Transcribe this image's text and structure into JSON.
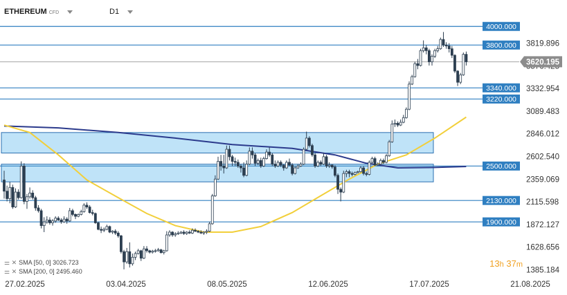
{
  "header": {
    "symbol": "ETHEREUM",
    "type": "CFD",
    "timeframe": "D1"
  },
  "legend": {
    "sma50": "SMA [50, 0] 3026.723",
    "sma200": "SMA [200, 0] 2495.460"
  },
  "timer": {
    "hours": "13",
    "h_unit": "h",
    "minutes": "37",
    "m_unit": "m"
  },
  "colors": {
    "level_line": "#2f7fc1",
    "level_label": "#2f7fc1",
    "zone_fill": "#bfe3f8",
    "zone_border": "#2a6fb0",
    "sma50": "#f2cf3a",
    "sma200": "#2b3a8c",
    "candle": "#2c3e50",
    "price_tag": "#8c8c8c"
  },
  "chart_data": {
    "type": "candlestick",
    "instrument": "ETHEREUM",
    "timeframe": "D1",
    "start_date": "2025-02-24",
    "ylim": [
      1300,
      4180
    ],
    "y_ticks": [
      "3819.896",
      "3576.425",
      "3332.954",
      "3089.483",
      "2846.012",
      "2602.540",
      "2359.069",
      "2115.598",
      "1872.127",
      "1628.656",
      "1385.184"
    ],
    "x_ticks": [
      "27.02.2025",
      "03.04.2025",
      "08.05.2025",
      "12.06.2025",
      "17.07.2025",
      "21.08.2025"
    ],
    "current_price": "3620.195",
    "levels": [
      {
        "value": 4000,
        "label": "4000.000"
      },
      {
        "value": 3800,
        "label": "3800.000"
      },
      {
        "value": 3340,
        "label": "3340.000"
      },
      {
        "value": 3220,
        "label": "3220.000"
      },
      {
        "value": 2500,
        "label": "2500.000"
      },
      {
        "value": 2130,
        "label": "2130.000"
      },
      {
        "value": 1900,
        "label": "1900.000"
      }
    ],
    "zones": [
      {
        "low": 2640,
        "high": 2860,
        "from": "2025-02-24",
        "to": "2025-07-24"
      },
      {
        "low": 2330,
        "high": 2520,
        "from": "2025-02-24",
        "to": "2025-07-24"
      }
    ],
    "sma50": [
      [
        "2025-02-24",
        2940
      ],
      [
        "2025-03-05",
        2860
      ],
      [
        "2025-03-15",
        2620
      ],
      [
        "2025-03-25",
        2350
      ],
      [
        "2025-04-05",
        2160
      ],
      [
        "2025-04-15",
        1990
      ],
      [
        "2025-04-25",
        1860
      ],
      [
        "2025-05-05",
        1790
      ],
      [
        "2025-05-15",
        1790
      ],
      [
        "2025-05-25",
        1850
      ],
      [
        "2025-06-05",
        2000
      ],
      [
        "2025-06-15",
        2180
      ],
      [
        "2025-06-25",
        2360
      ],
      [
        "2025-07-05",
        2520
      ],
      [
        "2025-07-15",
        2620
      ],
      [
        "2025-07-25",
        2800
      ],
      [
        "2025-08-05",
        3026
      ]
    ],
    "sma200": [
      [
        "2025-02-24",
        2930
      ],
      [
        "2025-03-15",
        2910
      ],
      [
        "2025-04-05",
        2860
      ],
      [
        "2025-04-25",
        2800
      ],
      [
        "2025-05-15",
        2730
      ],
      [
        "2025-06-05",
        2690
      ],
      [
        "2025-06-20",
        2620
      ],
      [
        "2025-07-01",
        2530
      ],
      [
        "2025-07-12",
        2480
      ],
      [
        "2025-07-25",
        2485
      ],
      [
        "2025-08-05",
        2495
      ]
    ],
    "candles": [
      [
        "2025-02-24",
        2350,
        2450,
        2150,
        2230
      ],
      [
        "2025-02-25",
        2230,
        2290,
        2120,
        2150
      ],
      [
        "2025-02-26",
        2150,
        2330,
        2100,
        2270
      ],
      [
        "2025-02-27",
        2270,
        2300,
        2040,
        2060
      ],
      [
        "2025-02-28",
        2060,
        2260,
        2050,
        2220
      ],
      [
        "2025-03-01",
        2220,
        2250,
        2140,
        2160
      ],
      [
        "2025-03-02",
        2160,
        2550,
        2150,
        2500
      ],
      [
        "2025-03-03",
        2500,
        2530,
        2090,
        2120
      ],
      [
        "2025-03-04",
        2120,
        2200,
        2040,
        2170
      ],
      [
        "2025-03-05",
        2170,
        2270,
        2150,
        2210
      ],
      [
        "2025-03-06",
        2210,
        2240,
        2140,
        2160
      ],
      [
        "2025-03-07",
        2160,
        2180,
        2020,
        2050
      ],
      [
        "2025-03-08",
        2050,
        2080,
        2000,
        2020
      ],
      [
        "2025-03-09",
        2020,
        2040,
        1830,
        1860
      ],
      [
        "2025-03-10",
        1860,
        1950,
        1790,
        1900
      ],
      [
        "2025-03-11",
        1900,
        1960,
        1880,
        1920
      ],
      [
        "2025-03-12",
        1920,
        1950,
        1870,
        1890
      ],
      [
        "2025-03-13",
        1890,
        1930,
        1860,
        1910
      ],
      [
        "2025-03-14",
        1910,
        1960,
        1890,
        1940
      ],
      [
        "2025-03-15",
        1940,
        1960,
        1910,
        1920
      ],
      [
        "2025-03-16",
        1920,
        1940,
        1880,
        1900
      ],
      [
        "2025-03-17",
        1900,
        1960,
        1890,
        1930
      ],
      [
        "2025-03-18",
        1930,
        1950,
        1880,
        1910
      ],
      [
        "2025-03-19",
        1910,
        2050,
        1900,
        2020
      ],
      [
        "2025-03-20",
        2020,
        2040,
        1960,
        1980
      ],
      [
        "2025-03-21",
        1980,
        1990,
        1930,
        1960
      ],
      [
        "2025-03-22",
        1960,
        1990,
        1950,
        1980
      ],
      [
        "2025-03-23",
        1980,
        2030,
        1970,
        2010
      ],
      [
        "2025-03-24",
        2010,
        2100,
        2000,
        2080
      ],
      [
        "2025-03-25",
        2080,
        2110,
        2040,
        2060
      ],
      [
        "2025-03-26",
        2060,
        2080,
        1990,
        2000
      ],
      [
        "2025-03-27",
        2000,
        2030,
        1970,
        1990
      ],
      [
        "2025-03-28",
        1990,
        2000,
        1880,
        1890
      ],
      [
        "2025-03-29",
        1890,
        1900,
        1810,
        1820
      ],
      [
        "2025-03-30",
        1820,
        1850,
        1780,
        1810
      ],
      [
        "2025-03-31",
        1810,
        1840,
        1790,
        1820
      ],
      [
        "2025-04-01",
        1820,
        1870,
        1810,
        1850
      ],
      [
        "2025-04-02",
        1850,
        1860,
        1780,
        1790
      ],
      [
        "2025-04-03",
        1790,
        1810,
        1770,
        1800
      ],
      [
        "2025-04-04",
        1800,
        1820,
        1760,
        1780
      ],
      [
        "2025-04-05",
        1780,
        1800,
        1730,
        1750
      ],
      [
        "2025-04-06",
        1750,
        1760,
        1560,
        1580
      ],
      [
        "2025-04-07",
        1580,
        1600,
        1390,
        1470
      ],
      [
        "2025-04-08",
        1470,
        1620,
        1450,
        1580
      ],
      [
        "2025-04-09",
        1580,
        1680,
        1410,
        1450
      ],
      [
        "2025-04-10",
        1450,
        1560,
        1430,
        1520
      ],
      [
        "2025-04-11",
        1520,
        1580,
        1490,
        1560
      ],
      [
        "2025-04-12",
        1560,
        1610,
        1550,
        1590
      ],
      [
        "2025-04-13",
        1590,
        1600,
        1480,
        1510
      ],
      [
        "2025-04-14",
        1510,
        1640,
        1500,
        1610
      ],
      [
        "2025-04-15",
        1610,
        1640,
        1570,
        1590
      ],
      [
        "2025-04-16",
        1590,
        1600,
        1560,
        1575
      ],
      [
        "2025-04-17",
        1575,
        1600,
        1560,
        1585
      ],
      [
        "2025-04-18",
        1585,
        1610,
        1570,
        1590
      ],
      [
        "2025-04-19",
        1590,
        1620,
        1580,
        1600
      ],
      [
        "2025-04-20",
        1600,
        1610,
        1560,
        1570
      ],
      [
        "2025-04-21",
        1570,
        1600,
        1550,
        1590
      ],
      [
        "2025-04-22",
        1590,
        1800,
        1580,
        1760
      ],
      [
        "2025-04-23",
        1760,
        1810,
        1740,
        1790
      ],
      [
        "2025-04-24",
        1790,
        1800,
        1740,
        1760
      ],
      [
        "2025-04-25",
        1760,
        1790,
        1740,
        1770
      ],
      [
        "2025-04-26",
        1770,
        1800,
        1760,
        1780
      ],
      [
        "2025-04-27",
        1780,
        1800,
        1770,
        1790
      ],
      [
        "2025-04-28",
        1790,
        1810,
        1760,
        1775
      ],
      [
        "2025-04-29",
        1775,
        1800,
        1760,
        1790
      ],
      [
        "2025-04-30",
        1790,
        1810,
        1770,
        1780
      ],
      [
        "2025-05-01",
        1780,
        1830,
        1770,
        1810
      ],
      [
        "2025-05-02",
        1810,
        1830,
        1790,
        1800
      ],
      [
        "2025-05-03",
        1800,
        1810,
        1780,
        1790
      ],
      [
        "2025-05-04",
        1790,
        1810,
        1770,
        1780
      ],
      [
        "2025-05-05",
        1780,
        1800,
        1760,
        1790
      ],
      [
        "2025-05-06",
        1790,
        1820,
        1770,
        1800
      ],
      [
        "2025-05-07",
        1800,
        1900,
        1790,
        1880
      ],
      [
        "2025-05-08",
        1880,
        2200,
        1870,
        2180
      ],
      [
        "2025-05-09",
        2180,
        2400,
        2170,
        2360
      ],
      [
        "2025-05-10",
        2360,
        2600,
        2350,
        2550
      ],
      [
        "2025-05-11",
        2550,
        2620,
        2450,
        2500
      ],
      [
        "2025-05-12",
        2500,
        2620,
        2420,
        2480
      ],
      [
        "2025-05-13",
        2480,
        2720,
        2470,
        2680
      ],
      [
        "2025-05-14",
        2680,
        2720,
        2560,
        2600
      ],
      [
        "2025-05-15",
        2600,
        2620,
        2500,
        2550
      ],
      [
        "2025-05-16",
        2550,
        2590,
        2500,
        2540
      ],
      [
        "2025-05-17",
        2540,
        2570,
        2480,
        2500
      ],
      [
        "2025-05-18",
        2500,
        2520,
        2430,
        2480
      ],
      [
        "2025-05-19",
        2480,
        2540,
        2380,
        2400
      ],
      [
        "2025-05-20",
        2400,
        2560,
        2390,
        2520
      ],
      [
        "2025-05-21",
        2520,
        2700,
        2510,
        2660
      ],
      [
        "2025-05-22",
        2660,
        2700,
        2580,
        2620
      ],
      [
        "2025-05-23",
        2620,
        2640,
        2500,
        2530
      ],
      [
        "2025-05-24",
        2530,
        2580,
        2510,
        2560
      ],
      [
        "2025-05-25",
        2560,
        2590,
        2480,
        2500
      ],
      [
        "2025-05-26",
        2500,
        2600,
        2490,
        2580
      ],
      [
        "2025-05-27",
        2580,
        2680,
        2570,
        2650
      ],
      [
        "2025-05-28",
        2650,
        2700,
        2600,
        2620
      ],
      [
        "2025-05-29",
        2620,
        2640,
        2500,
        2520
      ],
      [
        "2025-05-30",
        2520,
        2560,
        2480,
        2500
      ],
      [
        "2025-05-31",
        2500,
        2560,
        2490,
        2540
      ],
      [
        "2025-06-01",
        2540,
        2560,
        2490,
        2510
      ],
      [
        "2025-06-02",
        2510,
        2520,
        2450,
        2480
      ],
      [
        "2025-06-03",
        2480,
        2560,
        2470,
        2540
      ],
      [
        "2025-06-04",
        2540,
        2580,
        2500,
        2510
      ],
      [
        "2025-06-05",
        2510,
        2530,
        2400,
        2420
      ],
      [
        "2025-06-06",
        2420,
        2500,
        2410,
        2480
      ],
      [
        "2025-06-07",
        2480,
        2520,
        2470,
        2500
      ],
      [
        "2025-06-08",
        2500,
        2540,
        2490,
        2520
      ],
      [
        "2025-06-09",
        2520,
        2700,
        2510,
        2680
      ],
      [
        "2025-06-10",
        2680,
        2870,
        2670,
        2800
      ],
      [
        "2025-06-11",
        2800,
        2820,
        2700,
        2720
      ],
      [
        "2025-06-12",
        2720,
        2740,
        2600,
        2620
      ],
      [
        "2025-06-13",
        2620,
        2640,
        2480,
        2500
      ],
      [
        "2025-06-14",
        2500,
        2560,
        2490,
        2540
      ],
      [
        "2025-06-15",
        2540,
        2560,
        2500,
        2520
      ],
      [
        "2025-06-16",
        2520,
        2640,
        2510,
        2600
      ],
      [
        "2025-06-17",
        2600,
        2620,
        2480,
        2500
      ],
      [
        "2025-06-18",
        2500,
        2540,
        2480,
        2510
      ],
      [
        "2025-06-19",
        2510,
        2520,
        2470,
        2490
      ],
      [
        "2025-06-20",
        2490,
        2510,
        2380,
        2400
      ],
      [
        "2025-06-21",
        2400,
        2420,
        2200,
        2250
      ],
      [
        "2025-06-22",
        2250,
        2270,
        2120,
        2220
      ],
      [
        "2025-06-23",
        2220,
        2450,
        2210,
        2420
      ],
      [
        "2025-06-24",
        2420,
        2460,
        2380,
        2440
      ],
      [
        "2025-06-25",
        2440,
        2460,
        2380,
        2420
      ],
      [
        "2025-06-26",
        2420,
        2440,
        2390,
        2410
      ],
      [
        "2025-06-27",
        2410,
        2440,
        2400,
        2430
      ],
      [
        "2025-06-28",
        2430,
        2450,
        2420,
        2440
      ],
      [
        "2025-06-29",
        2440,
        2500,
        2430,
        2480
      ],
      [
        "2025-06-30",
        2480,
        2500,
        2400,
        2420
      ],
      [
        "2025-07-01",
        2420,
        2440,
        2390,
        2410
      ],
      [
        "2025-07-02",
        2410,
        2560,
        2400,
        2540
      ],
      [
        "2025-07-03",
        2540,
        2600,
        2520,
        2580
      ],
      [
        "2025-07-04",
        2580,
        2600,
        2500,
        2510
      ],
      [
        "2025-07-05",
        2510,
        2540,
        2500,
        2520
      ],
      [
        "2025-07-06",
        2520,
        2580,
        2510,
        2560
      ],
      [
        "2025-07-07",
        2560,
        2580,
        2520,
        2540
      ],
      [
        "2025-07-08",
        2540,
        2630,
        2530,
        2610
      ],
      [
        "2025-07-09",
        2610,
        2780,
        2600,
        2760
      ],
      [
        "2025-07-10",
        2760,
        2990,
        2750,
        2950
      ],
      [
        "2025-07-11",
        2950,
        3000,
        2920,
        2960
      ],
      [
        "2025-07-12",
        2960,
        2980,
        2920,
        2940
      ],
      [
        "2025-07-13",
        2940,
        3000,
        2930,
        2970
      ],
      [
        "2025-07-14",
        2970,
        3050,
        2960,
        3020
      ],
      [
        "2025-07-15",
        3020,
        3130,
        3010,
        3110
      ],
      [
        "2025-07-16",
        3110,
        3410,
        3100,
        3380
      ],
      [
        "2025-07-17",
        3380,
        3480,
        3370,
        3460
      ],
      [
        "2025-07-18",
        3460,
        3620,
        3450,
        3600
      ],
      [
        "2025-07-19",
        3600,
        3650,
        3540,
        3580
      ],
      [
        "2025-07-20",
        3580,
        3760,
        3570,
        3740
      ],
      [
        "2025-07-21",
        3740,
        3850,
        3720,
        3770
      ],
      [
        "2025-07-22",
        3770,
        3800,
        3700,
        3740
      ],
      [
        "2025-07-23",
        3740,
        3760,
        3580,
        3620
      ],
      [
        "2025-07-24",
        3620,
        3700,
        3580,
        3680
      ],
      [
        "2025-07-25",
        3680,
        3760,
        3660,
        3740
      ],
      [
        "2025-07-26",
        3740,
        3790,
        3720,
        3760
      ],
      [
        "2025-07-27",
        3760,
        3880,
        3750,
        3860
      ],
      [
        "2025-07-28",
        3860,
        3940,
        3780,
        3800
      ],
      [
        "2025-07-29",
        3800,
        3830,
        3760,
        3790
      ],
      [
        "2025-07-30",
        3790,
        3820,
        3720,
        3760
      ],
      [
        "2025-07-31",
        3760,
        3790,
        3660,
        3690
      ],
      [
        "2025-08-01",
        3690,
        3700,
        3500,
        3520
      ],
      [
        "2025-08-02",
        3520,
        3530,
        3360,
        3400
      ],
      [
        "2025-08-03",
        3400,
        3500,
        3380,
        3480
      ],
      [
        "2025-08-04",
        3480,
        3720,
        3470,
        3700
      ],
      [
        "2025-08-05",
        3700,
        3730,
        3580,
        3620
      ]
    ]
  }
}
